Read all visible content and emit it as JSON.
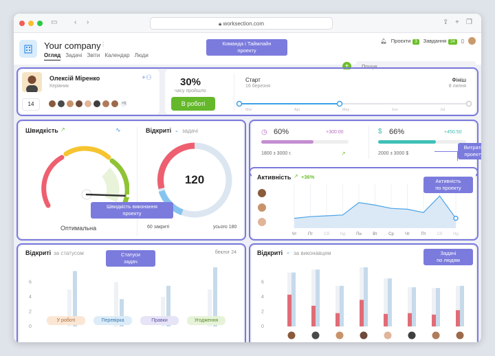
{
  "browser": {
    "url": "worksection.com"
  },
  "header": {
    "company": "Your company",
    "tabs": [
      "Огляд",
      "Задачі",
      "Звіти",
      "Календар",
      "Люди"
    ],
    "projects_label": "Проєкти",
    "projects_count": "3",
    "tasks_label": "Завдання",
    "tasks_count": "24",
    "search_placeholder": "Пошук"
  },
  "callouts": {
    "team": "Команда і Таймлайн\nпроекту",
    "speed": "Швидкість виконання\nпроекту",
    "costs": "Витрати\nпроекту",
    "activity": "Активність\nпо проекту",
    "statuses": "Статуси\nзадач",
    "people": "Задачі\nпо людям"
  },
  "person": {
    "name": "Олексій Міренко",
    "role": "Керівник",
    "count": "14",
    "more": "+6"
  },
  "timeline": {
    "percent": "30%",
    "percent_label": "часу пройшло",
    "status_button": "В роботі",
    "start_label": "Старт",
    "start_date": "16 березня",
    "finish_label": "Фініш",
    "finish_date": "8 липня",
    "months": [
      "Mar",
      "Apr",
      "May",
      "Jun",
      "Jul"
    ]
  },
  "finance": {
    "time": {
      "pct": "60%",
      "delta": "+300:00",
      "detail": "1800 з 3000 г.",
      "fill": 0.6
    },
    "money": {
      "pct": "66%",
      "delta": "+450.50",
      "detail": "2000 з 3000 $",
      "fill": 0.66
    }
  },
  "speed": {
    "title": "Швидкість",
    "label": "Оптимальна"
  },
  "open_donut": {
    "title": "Відкриті",
    "filter": "задачі",
    "value": "120",
    "closed": "60 закриті",
    "total": "усього 180"
  },
  "activity": {
    "title": "Активність",
    "delta": "+36%",
    "days": [
      "Чт",
      "Пт",
      "Сб",
      "Нд",
      "Пн",
      "Вт",
      "Ср",
      "Чт",
      "Пт",
      "Сб",
      "Нд"
    ]
  },
  "status_chart": {
    "title": "Відкриті",
    "filter": "за статусом",
    "backlog": "беклог 24",
    "yticks": [
      "6",
      "4",
      "2",
      "0"
    ],
    "labels": [
      "У роботі",
      "Перевірка",
      "Правки",
      "Угодження"
    ]
  },
  "people_chart": {
    "title": "Відкриті",
    "filter": "за виконавцем",
    "yticks": [
      "6",
      "4",
      "2",
      "0"
    ]
  },
  "chart_data": [
    {
      "type": "bar",
      "title": "Відкриті за статусом",
      "categories": [
        "У роботі",
        "Перевірка",
        "Правки",
        "Угодження"
      ],
      "series": [
        {
          "values": [
            5,
            6,
            4,
            5
          ]
        },
        {
          "values": [
            7.5,
            3.7,
            5.5,
            8
          ]
        }
      ],
      "ylim": [
        0,
        8
      ]
    },
    {
      "type": "bar",
      "title": "Відкриті за виконавцем",
      "categories": [
        "1",
        "2",
        "3",
        "4",
        "5",
        "6",
        "7",
        "8"
      ],
      "series": [
        {
          "values": [
            7.3,
            7.7,
            5.5,
            8,
            6.5,
            5.3,
            5.2,
            5.5
          ]
        },
        {
          "values": [
            4.3,
            2.8,
            1.8,
            3.6,
            1.7,
            1.8,
            1.6,
            2.2
          ]
        }
      ],
      "ylim": [
        0,
        8
      ]
    },
    {
      "type": "line",
      "title": "Активність",
      "categories": [
        "Чт",
        "Пт",
        "Сб",
        "Нд",
        "Пн",
        "Вт",
        "Ср",
        "Чт",
        "Пт",
        "Сб",
        "Нд"
      ],
      "values": [
        1.2,
        1.4,
        1.5,
        1.6,
        3.1,
        2.8,
        2.4,
        2.3,
        1.9,
        3.9,
        1.2
      ],
      "ylim": [
        0,
        5
      ]
    }
  ]
}
